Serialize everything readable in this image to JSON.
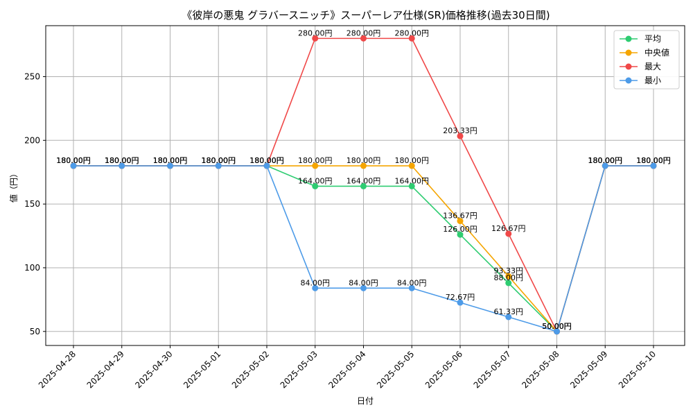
{
  "chart_data": {
    "type": "line",
    "title": "《彼岸の悪鬼 グラバースニッチ》スーパーレア仕様(SR)価格推移(過去30日間)",
    "xlabel": "日付",
    "ylabel": "値（円）",
    "ylim": [
      39,
      290
    ],
    "yticks": [
      50,
      100,
      150,
      200,
      250
    ],
    "grid": true,
    "legend_position": "top-right",
    "value_suffix": "円",
    "categories": [
      "2025-04-28",
      "2025-04-29",
      "2025-04-30",
      "2025-05-01",
      "2025-05-02",
      "2025-05-03",
      "2025-05-04",
      "2025-05-05",
      "2025-05-06",
      "2025-05-07",
      "2025-05-08",
      "2025-05-09",
      "2025-05-10"
    ],
    "series": [
      {
        "name": "平均",
        "color": "#2ecc71",
        "values": [
          180,
          180,
          180,
          180,
          180,
          164,
          164,
          164,
          126,
          88,
          50,
          180,
          180
        ],
        "labels": [
          "180.00円",
          "180.00円",
          "180.00円",
          "180.00円",
          "180.00円",
          "164.00円",
          "164.00円",
          "164.00円",
          "126.00円",
          "88.00円",
          "50.00円",
          "180.00円",
          "180.00円"
        ]
      },
      {
        "name": "中央値",
        "color": "#f5a500",
        "values": [
          180,
          180,
          180,
          180,
          180,
          180,
          180,
          180,
          136.67,
          93.33,
          50,
          180,
          180
        ],
        "labels": [
          "180.00円",
          "180.00円",
          "180.00円",
          "180.00円",
          "180.00円",
          "180.00円",
          "180.00円",
          "180.00円",
          "136.67円",
          "93.33円",
          "50.00円",
          "180.00円",
          "180.00円"
        ]
      },
      {
        "name": "最大",
        "color": "#f04848",
        "values": [
          180,
          180,
          180,
          180,
          180,
          280,
          280,
          280,
          203.33,
          126.67,
          50,
          180,
          180
        ],
        "labels": [
          "180.00円",
          "180.00円",
          "180.00円",
          "180.00円",
          "180.00円",
          "280.00円",
          "280.00円",
          "280.00円",
          "203.33円",
          "126.67円",
          "50.00円",
          "180.00円",
          "180.00円"
        ]
      },
      {
        "name": "最小",
        "color": "#4d9be8",
        "values": [
          180,
          180,
          180,
          180,
          180,
          84,
          84,
          84,
          72.67,
          61.33,
          50,
          180,
          180
        ],
        "labels": [
          "180.00円",
          "180.00円",
          "180.00円",
          "180.00円",
          "180.00円",
          "84.00円",
          "84.00円",
          "84.00円",
          "72.67円",
          "61.33円",
          "50.00円",
          "180.00円",
          "180.00円"
        ]
      }
    ]
  }
}
